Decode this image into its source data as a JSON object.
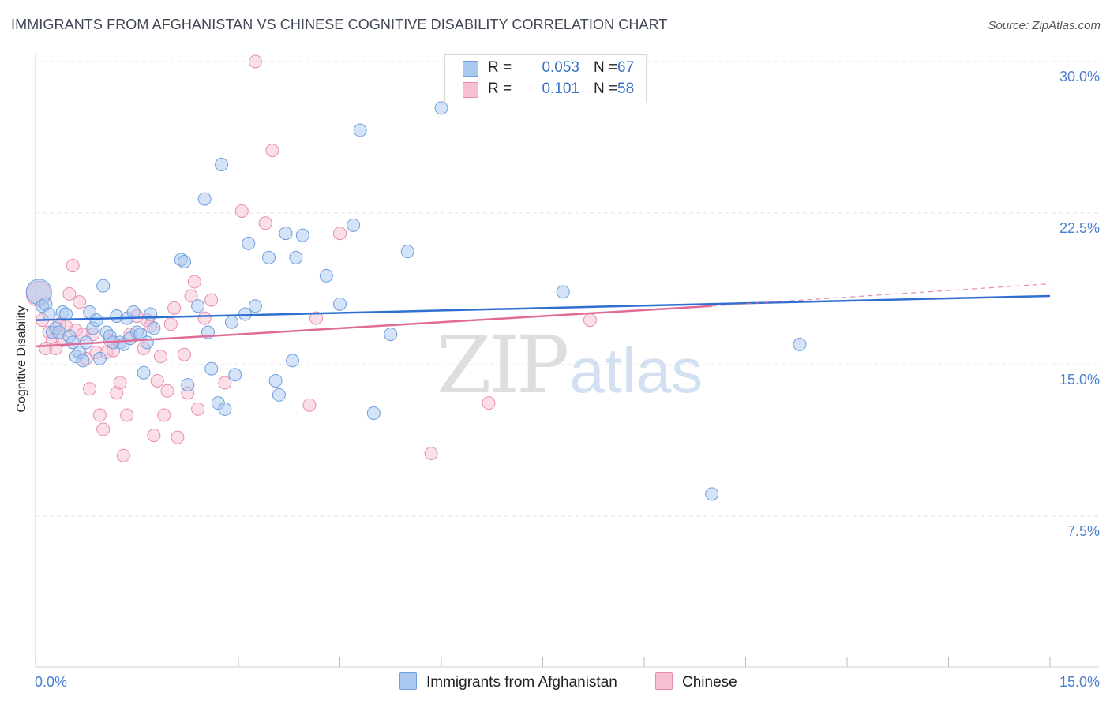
{
  "title": "IMMIGRANTS FROM AFGHANISTAN VS CHINESE COGNITIVE DISABILITY CORRELATION CHART",
  "source": "Source: ZipAtlas.com",
  "watermark": {
    "zip": "ZIP",
    "atlas": "atlas"
  },
  "colors": {
    "blue_fill": "#aac8f0",
    "blue_stroke": "#6f9fdc",
    "blue_line": "#2f6fd1",
    "pink_fill": "#f6c0d2",
    "pink_stroke": "#e98cad",
    "pink_line": "#e06b96",
    "tick_text": "#4a7fd0",
    "grid": "#e2e2e2"
  },
  "legend": {
    "rows": [
      {
        "r_label": "R =",
        "r_value": "0.053",
        "n_label": "N =",
        "n_value": "67"
      },
      {
        "r_label": "R =",
        "r_value": "0.101",
        "n_label": "N =",
        "n_value": "58"
      }
    ]
  },
  "bottom_legend": {
    "series1": "Immigrants from Afghanistan",
    "series2": "Chinese"
  },
  "chart_data": {
    "type": "scatter",
    "title": "IMMIGRANTS FROM AFGHANISTAN VS CHINESE COGNITIVE DISABILITY CORRELATION CHART",
    "xlabel": "",
    "ylabel": "Cognitive Disability",
    "xlim": [
      0,
      15
    ],
    "ylim": [
      0,
      31
    ],
    "x_tick_labels": [
      "0.0%",
      "15.0%"
    ],
    "y_ticks": [
      7.5,
      15,
      22.5,
      30
    ],
    "y_tick_labels": [
      "7.5%",
      "15.0%",
      "22.5%",
      "30.0%"
    ],
    "grid": true,
    "series": [
      {
        "name": "Immigrants from Afghanistan",
        "color": "blue",
        "trend": {
          "x0": 0,
          "y0": 17.2,
          "x1": 15,
          "y1": 18.4
        },
        "points": [
          [
            0.05,
            18.6
          ],
          [
            0.1,
            17.9
          ],
          [
            0.15,
            18.0
          ],
          [
            0.2,
            17.5
          ],
          [
            0.25,
            16.6
          ],
          [
            0.3,
            16.8
          ],
          [
            0.35,
            16.6
          ],
          [
            0.4,
            17.6
          ],
          [
            0.45,
            17.5
          ],
          [
            0.5,
            16.4
          ],
          [
            0.55,
            16.1
          ],
          [
            0.6,
            15.4
          ],
          [
            0.65,
            15.6
          ],
          [
            0.7,
            15.2
          ],
          [
            0.75,
            16.1
          ],
          [
            0.8,
            17.6
          ],
          [
            0.85,
            16.8
          ],
          [
            0.9,
            17.2
          ],
          [
            0.95,
            15.3
          ],
          [
            1.0,
            18.9
          ],
          [
            1.05,
            16.6
          ],
          [
            1.1,
            16.4
          ],
          [
            1.15,
            16.1
          ],
          [
            1.2,
            17.4
          ],
          [
            1.25,
            16.1
          ],
          [
            1.3,
            16.0
          ],
          [
            1.35,
            17.3
          ],
          [
            1.4,
            16.3
          ],
          [
            1.45,
            17.6
          ],
          [
            1.5,
            16.6
          ],
          [
            1.55,
            16.5
          ],
          [
            1.6,
            14.6
          ],
          [
            1.65,
            16.1
          ],
          [
            1.7,
            17.5
          ],
          [
            1.75,
            16.8
          ],
          [
            2.15,
            20.2
          ],
          [
            2.2,
            20.1
          ],
          [
            2.25,
            14.0
          ],
          [
            2.4,
            17.9
          ],
          [
            2.5,
            23.2
          ],
          [
            2.55,
            16.6
          ],
          [
            2.6,
            14.8
          ],
          [
            2.7,
            13.1
          ],
          [
            2.75,
            24.9
          ],
          [
            2.8,
            12.8
          ],
          [
            2.9,
            17.1
          ],
          [
            2.95,
            14.5
          ],
          [
            3.1,
            17.5
          ],
          [
            3.15,
            21.0
          ],
          [
            3.25,
            17.9
          ],
          [
            3.45,
            20.3
          ],
          [
            3.55,
            14.2
          ],
          [
            3.6,
            13.5
          ],
          [
            3.7,
            21.5
          ],
          [
            3.8,
            15.2
          ],
          [
            3.85,
            20.3
          ],
          [
            3.95,
            21.4
          ],
          [
            4.3,
            19.4
          ],
          [
            4.5,
            18.0
          ],
          [
            4.7,
            21.9
          ],
          [
            4.8,
            26.6
          ],
          [
            5.0,
            12.6
          ],
          [
            5.25,
            16.5
          ],
          [
            5.5,
            20.6
          ],
          [
            6.0,
            27.7
          ],
          [
            7.8,
            18.6
          ],
          [
            10.0,
            8.6
          ],
          [
            11.3,
            16.0
          ]
        ]
      },
      {
        "name": "Chinese",
        "color": "pink",
        "trend": {
          "x0": 0,
          "y0": 15.9,
          "x1": 10,
          "y1": 17.9,
          "dash_to_x": 15,
          "dash_to_y": 19.0
        },
        "points": [
          [
            0.05,
            18.5
          ],
          [
            0.1,
            17.2
          ],
          [
            0.15,
            15.8
          ],
          [
            0.2,
            16.6
          ],
          [
            0.25,
            16.2
          ],
          [
            0.3,
            15.8
          ],
          [
            0.35,
            17.0
          ],
          [
            0.4,
            16.2
          ],
          [
            0.45,
            16.9
          ],
          [
            0.5,
            18.5
          ],
          [
            0.55,
            19.9
          ],
          [
            0.6,
            16.7
          ],
          [
            0.65,
            18.1
          ],
          [
            0.7,
            16.5
          ],
          [
            0.75,
            15.3
          ],
          [
            0.8,
            13.8
          ],
          [
            0.85,
            16.5
          ],
          [
            0.9,
            15.6
          ],
          [
            0.95,
            12.5
          ],
          [
            1.0,
            11.8
          ],
          [
            1.05,
            15.6
          ],
          [
            1.1,
            16.2
          ],
          [
            1.15,
            15.7
          ],
          [
            1.2,
            13.6
          ],
          [
            1.25,
            14.1
          ],
          [
            1.3,
            10.5
          ],
          [
            1.35,
            12.5
          ],
          [
            1.4,
            16.5
          ],
          [
            1.5,
            17.4
          ],
          [
            1.6,
            15.8
          ],
          [
            1.65,
            17.2
          ],
          [
            1.7,
            16.9
          ],
          [
            1.75,
            11.5
          ],
          [
            1.8,
            14.2
          ],
          [
            1.85,
            15.4
          ],
          [
            1.9,
            12.5
          ],
          [
            1.95,
            13.7
          ],
          [
            2.0,
            17.0
          ],
          [
            2.05,
            17.8
          ],
          [
            2.1,
            11.4
          ],
          [
            2.2,
            15.5
          ],
          [
            2.25,
            13.6
          ],
          [
            2.3,
            18.4
          ],
          [
            2.35,
            19.1
          ],
          [
            2.4,
            12.8
          ],
          [
            2.5,
            17.3
          ],
          [
            2.6,
            18.2
          ],
          [
            2.8,
            14.1
          ],
          [
            3.05,
            22.6
          ],
          [
            3.25,
            30.0
          ],
          [
            3.4,
            22.0
          ],
          [
            3.5,
            25.6
          ],
          [
            4.05,
            13.0
          ],
          [
            4.15,
            17.3
          ],
          [
            4.5,
            21.5
          ],
          [
            5.85,
            10.6
          ],
          [
            6.7,
            13.1
          ],
          [
            8.2,
            17.2
          ]
        ]
      }
    ]
  }
}
